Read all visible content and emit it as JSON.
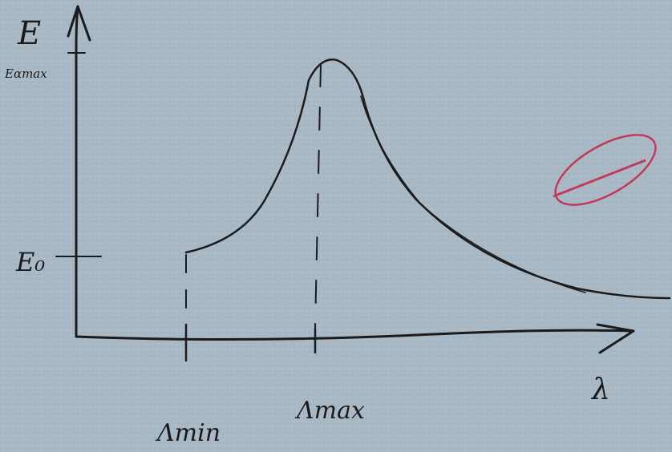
{
  "axes": {
    "y_label": "E",
    "x_label": "λ"
  },
  "y_ticks": [
    "Eαmax",
    "E₀"
  ],
  "x_ticks": [
    "Λmin",
    "Λmax"
  ]
}
